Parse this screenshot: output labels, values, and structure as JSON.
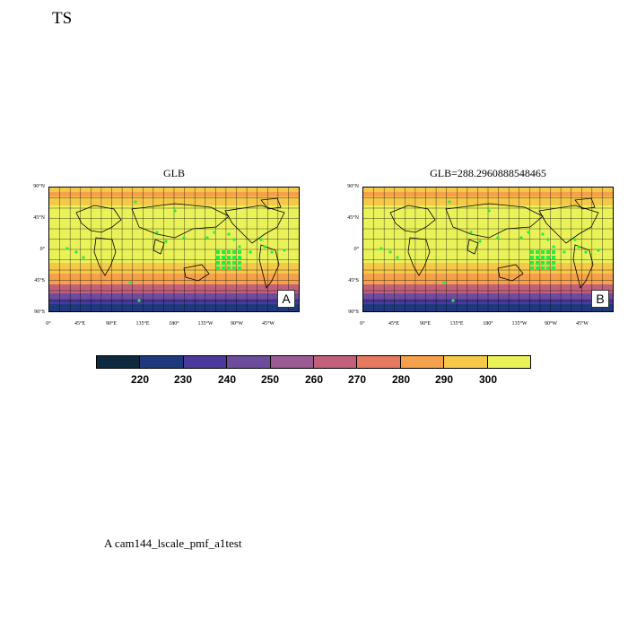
{
  "page_title": "TS",
  "panels": [
    {
      "title": "GLB",
      "tag": "A"
    },
    {
      "title": "GLB=288.2960888548465",
      "tag": "B"
    }
  ],
  "lat_labels": [
    "90°N",
    "45°N",
    "0°",
    "45°S",
    "90°S"
  ],
  "lon_labels": [
    "0°",
    "45°E",
    "90°E",
    "135°E",
    "180°",
    "135°W",
    "90°W",
    "45°W"
  ],
  "colorbar": {
    "colors": [
      "#0d2a3f",
      "#1e3a7c",
      "#4b3a9c",
      "#6e4c9c",
      "#9a5a94",
      "#c0607a",
      "#e47960",
      "#f5a04a",
      "#f6c84a",
      "#eaf25a"
    ],
    "labels": [
      "220",
      "230",
      "240",
      "250",
      "260",
      "270",
      "280",
      "290",
      "300"
    ]
  },
  "caption": "A  cam144_lscale_pmf_a1test"
}
